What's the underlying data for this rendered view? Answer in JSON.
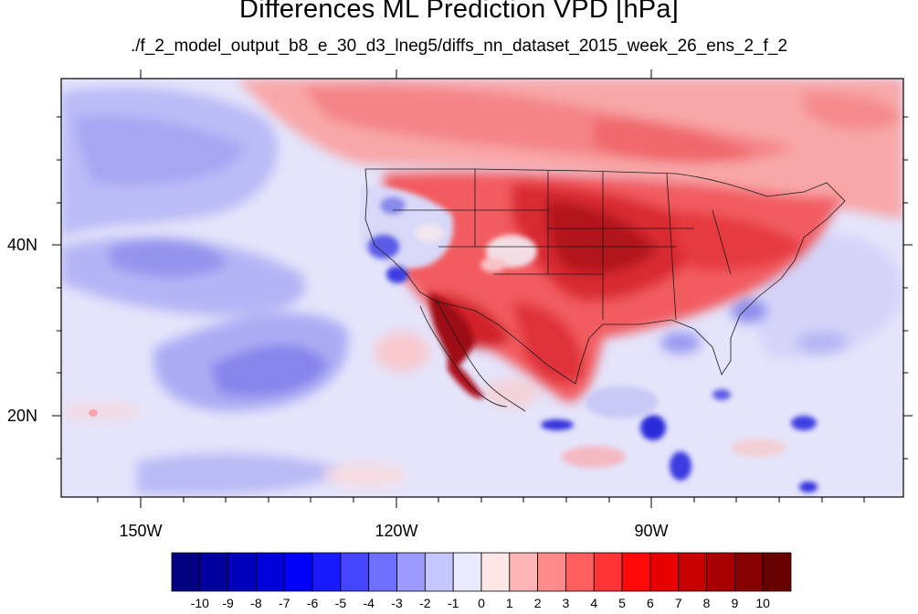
{
  "title": "Differences ML Prediction VPD [hPa]",
  "subtitle": "./f_2_model_output_b8_e_30_d3_lneg5/diffs_nn_dataset_2015_week_26_ens_2_f_2",
  "map": {
    "lat_labels": [
      "40N",
      "20N"
    ],
    "lon_labels": [
      "150W",
      "120W",
      "90W"
    ],
    "extent": {
      "lon_min": -160,
      "lon_max": -58,
      "lat_min": 11,
      "lat_max": 61
    }
  },
  "colorbar": {
    "labels": [
      "-10",
      "-9",
      "-8",
      "-7",
      "-6",
      "-5",
      "-4",
      "-3",
      "-2",
      "-1",
      "0",
      "1",
      "2",
      "3",
      "4",
      "5",
      "6",
      "7",
      "8",
      "9",
      "10"
    ],
    "colors": [
      "#000080",
      "#00009e",
      "#0000bd",
      "#0000db",
      "#0000fa",
      "#1a1aff",
      "#4545ff",
      "#7070ff",
      "#9a9aff",
      "#c5c5ff",
      "#eaeafd",
      "#fde6e6",
      "#ffb5b5",
      "#ff8a8a",
      "#ff5f5f",
      "#ff3535",
      "#ff0a0a",
      "#e60000",
      "#c70000",
      "#a70000",
      "#870000",
      "#680000"
    ]
  }
}
